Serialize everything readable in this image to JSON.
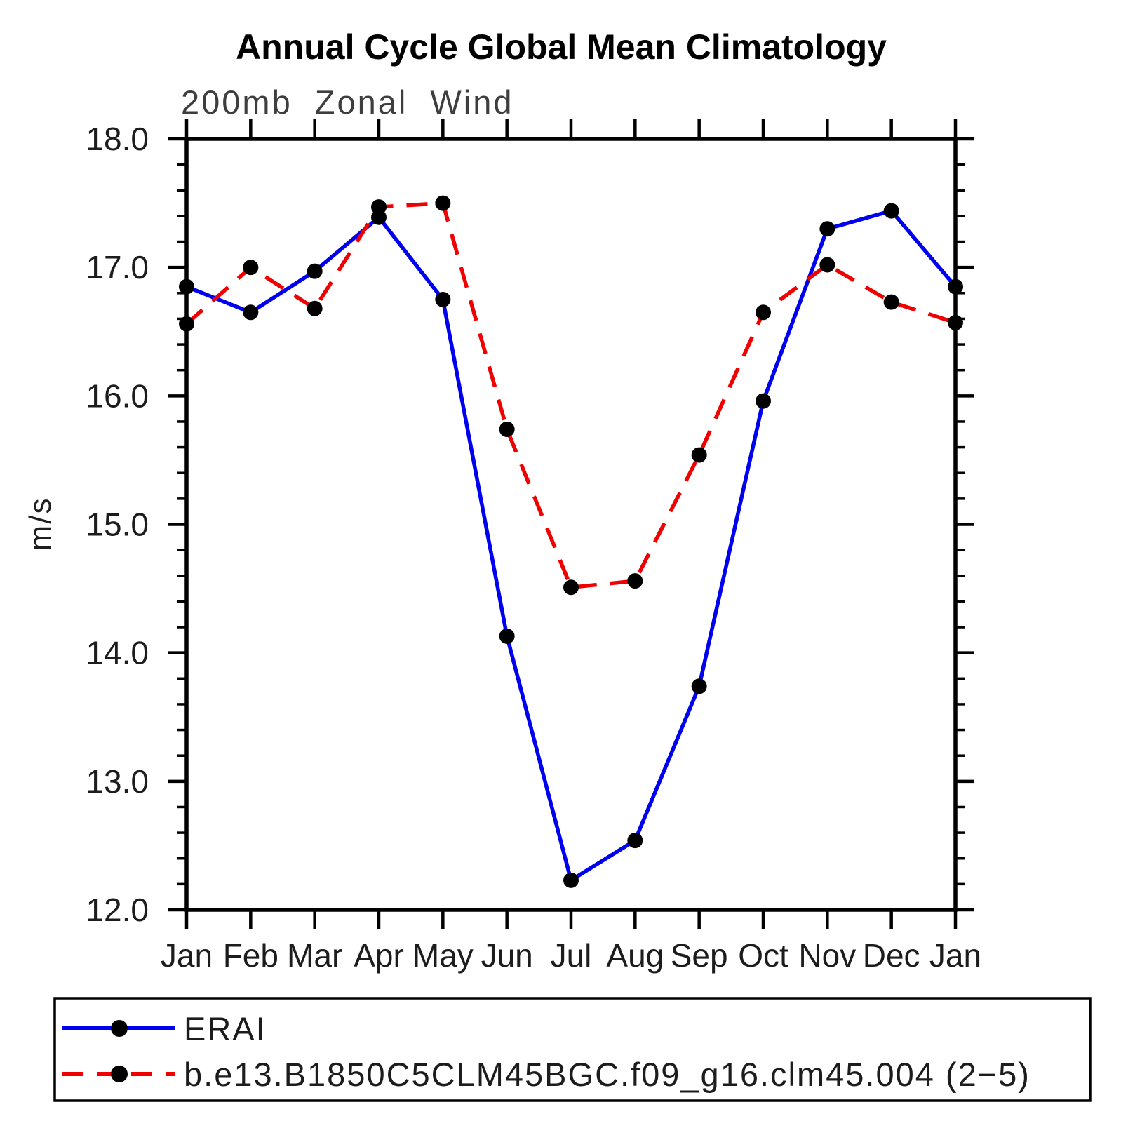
{
  "title": "Annual Cycle Global Mean Climatology",
  "subtitle": "200mb Zonal Wind",
  "ylabel": "m/s",
  "chart_data": {
    "type": "line",
    "title": "Annual Cycle Global Mean Climatology",
    "subtitle": "200mb Zonal Wind",
    "ylabel": "m/s",
    "categories": [
      "Jan",
      "Feb",
      "Mar",
      "Apr",
      "May",
      "Jun",
      "Jul",
      "Aug",
      "Sep",
      "Oct",
      "Nov",
      "Dec",
      "Jan"
    ],
    "ylim": [
      12.0,
      18.0
    ],
    "y_major_step": 1.0,
    "y_minor_step": 0.2,
    "y_tick_labels": [
      "12.0",
      "13.0",
      "14.0",
      "15.0",
      "16.0",
      "17.0",
      "18.0"
    ],
    "grid": "off",
    "legend_position": "bottom-left-box",
    "marker": {
      "shape": "circle",
      "color": "#000000",
      "radius": 11
    },
    "series": [
      {
        "name": "ERAI",
        "color": "#0000f0",
        "line_style": "solid",
        "values": [
          16.85,
          16.65,
          16.97,
          17.39,
          16.75,
          14.13,
          12.23,
          12.54,
          13.74,
          15.96,
          17.3,
          17.44,
          16.85
        ]
      },
      {
        "name": "b.e13.B1850C5CLM45BGC.f09_g16.clm45.004 (2−5)",
        "color": "#f00000",
        "line_style": "dashed",
        "values": [
          16.56,
          17.0,
          16.68,
          17.47,
          17.5,
          15.74,
          14.51,
          14.56,
          15.54,
          16.65,
          17.02,
          16.73,
          16.57
        ]
      }
    ]
  }
}
